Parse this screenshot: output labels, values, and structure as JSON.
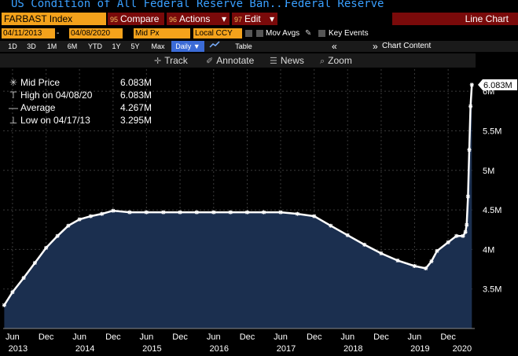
{
  "window": {
    "title": "US Condition of All Federal Reserve Ban...",
    "source": "Federal Reserve"
  },
  "menu": {
    "ticker": "FARBAST Index",
    "compare": {
      "num": "95",
      "label": "Compare"
    },
    "actions": {
      "num": "96",
      "label": "Actions",
      "arrow": "▾"
    },
    "edit": {
      "num": "97",
      "label": "Edit",
      "arrow": "▾"
    },
    "chart_type": "Line Chart"
  },
  "options": {
    "start_date": "04/11/2013",
    "end_date": "04/08/2020",
    "date_sep": "-",
    "field": "Mid Px",
    "currency": "Local CCY",
    "mov_avgs": "Mov Avgs",
    "key_events": "Key Events"
  },
  "periods": {
    "items": [
      "1D",
      "3D",
      "1M",
      "6M",
      "YTD",
      "1Y",
      "5Y",
      "Max"
    ],
    "frequency": "Daily ▼",
    "table": "Table",
    "chart_content": "Chart Content"
  },
  "toolbar": {
    "track": "Track",
    "annotate": "Annotate",
    "news": "News",
    "zoom": "Zoom"
  },
  "legend": {
    "rows": [
      {
        "label": "Mid Price",
        "value": "6.083M"
      },
      {
        "label": "High on 04/08/20",
        "value": "6.083M"
      },
      {
        "label": "Average",
        "value": "4.267M"
      },
      {
        "label": "Low on 04/17/13",
        "value": "3.295M"
      }
    ]
  },
  "colors": {
    "area": "#1b2f4f",
    "line": "#ffffff",
    "brand_orange": "#f4a21b",
    "button_red": "#7a0a0a",
    "title_blue": "#3aa0ff"
  },
  "chart_data": {
    "type": "area",
    "title": "US Condition of All Federal Reserve Ban...",
    "series": [
      {
        "name": "Mid Price",
        "x": [
          "2013-04-17",
          "2013-06-01",
          "2013-08-01",
          "2013-10-01",
          "2013-12-01",
          "2014-02-01",
          "2014-04-01",
          "2014-06-01",
          "2014-08-01",
          "2014-10-01",
          "2014-12-01",
          "2015-03-01",
          "2015-06-01",
          "2015-09-01",
          "2015-12-01",
          "2016-03-01",
          "2016-06-01",
          "2016-09-01",
          "2016-12-01",
          "2017-03-01",
          "2017-06-01",
          "2017-09-01",
          "2017-12-01",
          "2018-03-01",
          "2018-06-01",
          "2018-09-01",
          "2018-12-01",
          "2019-03-01",
          "2019-06-01",
          "2019-08-01",
          "2019-09-01",
          "2019-10-01",
          "2019-12-01",
          "2020-01-15",
          "2020-02-20",
          "2020-03-04",
          "2020-03-11",
          "2020-03-18",
          "2020-03-25",
          "2020-04-01",
          "2020-04-08"
        ],
        "y": [
          3.295,
          3.46,
          3.64,
          3.83,
          4.02,
          4.17,
          4.3,
          4.38,
          4.42,
          4.45,
          4.49,
          4.47,
          4.47,
          4.47,
          4.47,
          4.47,
          4.47,
          4.47,
          4.47,
          4.47,
          4.47,
          4.45,
          4.42,
          4.3,
          4.18,
          4.06,
          3.95,
          3.86,
          3.79,
          3.76,
          3.85,
          3.98,
          4.09,
          4.17,
          4.17,
          4.22,
          4.31,
          4.67,
          5.26,
          5.81,
          6.083
        ]
      }
    ],
    "x_ticks": [
      {
        "date": "2013-06-01",
        "label": "Jun"
      },
      {
        "date": "2013-12-01",
        "label": "Dec"
      },
      {
        "date": "2014-06-01",
        "label": "Jun"
      },
      {
        "date": "2014-12-01",
        "label": "Dec"
      },
      {
        "date": "2015-06-01",
        "label": "Jun"
      },
      {
        "date": "2015-12-01",
        "label": "Dec"
      },
      {
        "date": "2016-06-01",
        "label": "Jun"
      },
      {
        "date": "2016-12-01",
        "label": "Dec"
      },
      {
        "date": "2017-06-01",
        "label": "Jun"
      },
      {
        "date": "2017-12-01",
        "label": "Dec"
      },
      {
        "date": "2018-06-01",
        "label": "Jun"
      },
      {
        "date": "2018-12-01",
        "label": "Dec"
      },
      {
        "date": "2019-06-01",
        "label": "Jun"
      },
      {
        "date": "2019-12-01",
        "label": "Dec"
      }
    ],
    "year_labels": [
      {
        "date": "2013-07-01",
        "label": "2013"
      },
      {
        "date": "2014-07-01",
        "label": "2014"
      },
      {
        "date": "2015-07-01",
        "label": "2015"
      },
      {
        "date": "2016-07-01",
        "label": "2016"
      },
      {
        "date": "2017-07-01",
        "label": "2017"
      },
      {
        "date": "2018-07-01",
        "label": "2018"
      },
      {
        "date": "2019-07-01",
        "label": "2019"
      },
      {
        "date": "2020-02-15",
        "label": "2020"
      }
    ],
    "y_ticks": [
      {
        "value": 3.5,
        "label": "3.5M"
      },
      {
        "value": 4.0,
        "label": "4M"
      },
      {
        "value": 4.5,
        "label": "4.5M"
      },
      {
        "value": 5.0,
        "label": "5M"
      },
      {
        "value": 5.5,
        "label": "5.5M"
      },
      {
        "value": 6.0,
        "label": "6M"
      }
    ],
    "xlim": [
      "2013-04-11",
      "2020-04-24"
    ],
    "ylim": [
      3.0,
      6.28
    ],
    "last_value_label": "6.083M",
    "grid": true,
    "legend": "top-left"
  }
}
